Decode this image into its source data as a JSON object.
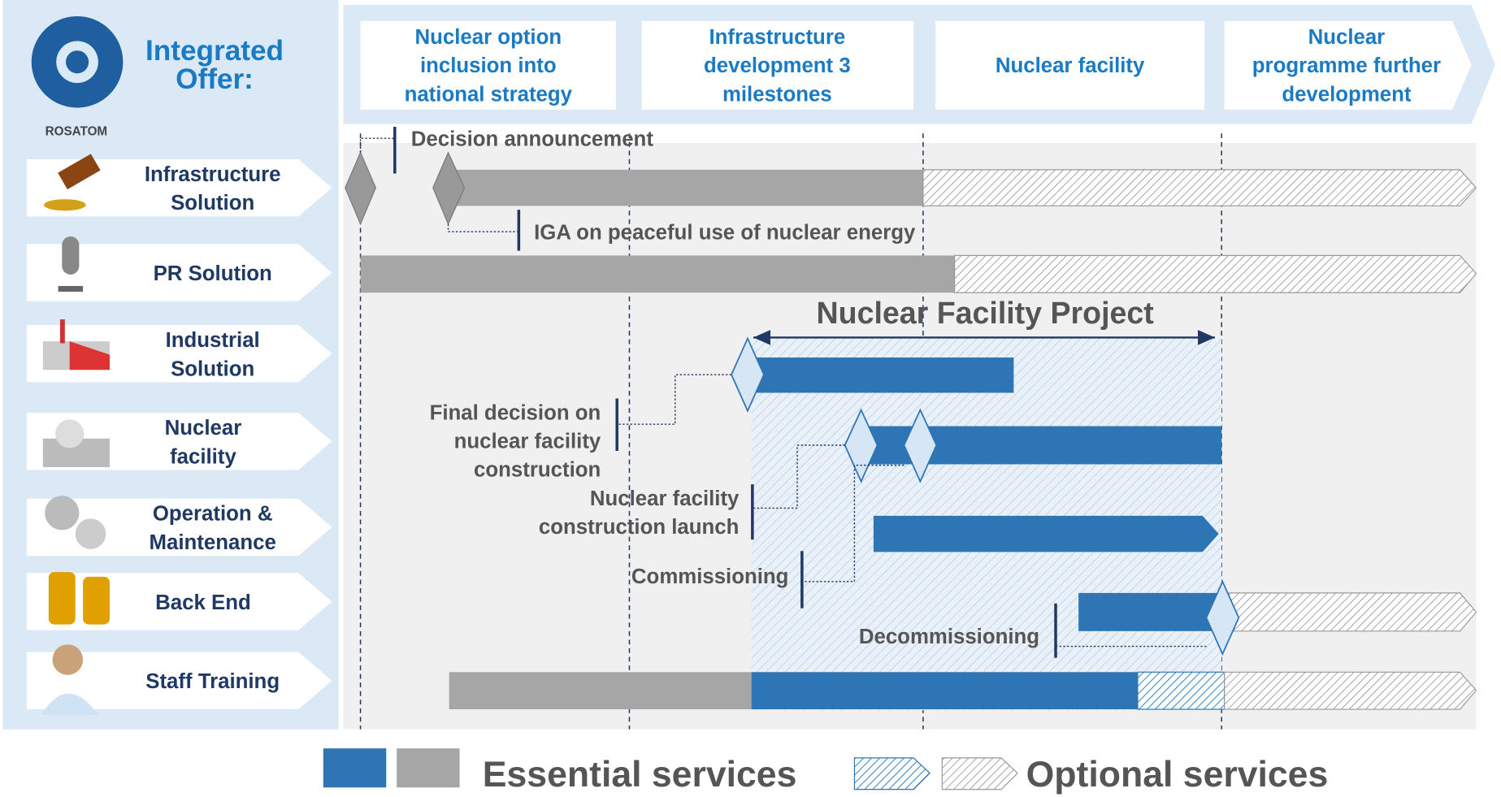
{
  "header": {
    "title": [
      "Integrated",
      "Offer:"
    ],
    "logo_text": "ROSATOM"
  },
  "phases": [
    [
      "Nuclear option",
      "inclusion into",
      "national strategy"
    ],
    [
      "Infrastructure",
      "development 3",
      "milestones"
    ],
    [
      "Nuclear facility"
    ],
    [
      "Nuclear",
      "programme further",
      "development"
    ]
  ],
  "rows": [
    [
      "Infrastructure",
      "Solution"
    ],
    [
      "PR Solution"
    ],
    [
      "Industrial",
      "Solution"
    ],
    [
      "Nuclear",
      "facility"
    ],
    [
      "Operation &",
      "Maintenance"
    ],
    [
      "Back End"
    ],
    [
      "Staff Training"
    ]
  ],
  "milestones": [
    [
      "Decision announcement"
    ],
    [
      "IGA on peaceful use of nuclear energy"
    ],
    [
      "Final decision on",
      "nuclear facility",
      "construction"
    ],
    [
      "Nuclear facility",
      "construction launch"
    ],
    [
      "Commissioning"
    ],
    [
      "Decommissioning"
    ]
  ],
  "project_label": "Nuclear Facility Project",
  "legend": {
    "essential": "Essential services",
    "optional": "Optional services"
  }
}
